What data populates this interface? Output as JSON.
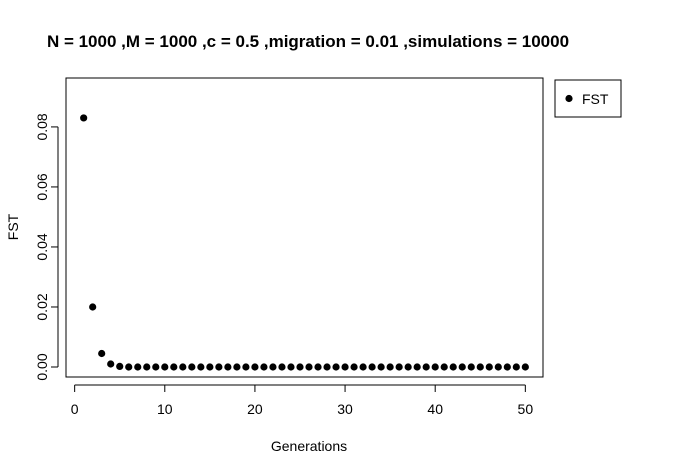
{
  "chart_data": {
    "type": "scatter",
    "title": "N = 1000 ,M = 1000 ,c = 0.5 ,migration = 0.01 ,simulations = 10000",
    "xlabel": "Generations",
    "ylabel": "FST",
    "xlim": [
      -0.96,
      51.96
    ],
    "ylim": [
      -0.00333,
      0.0963
    ],
    "x_ticks": [
      0,
      10,
      20,
      30,
      40,
      50
    ],
    "x_tick_labels": [
      "0",
      "10",
      "20",
      "30",
      "40",
      "50"
    ],
    "y_ticks": [
      0.0,
      0.02,
      0.04,
      0.06,
      0.08
    ],
    "y_tick_labels": [
      "0.00",
      "0.02",
      "0.04",
      "0.06",
      "0.08"
    ],
    "grid": false,
    "legend": {
      "position": "outside-top-right",
      "entries": [
        "FST"
      ]
    },
    "series": [
      {
        "name": "FST",
        "color": "#000000",
        "marker": "filled-circle",
        "x": [
          1,
          2,
          3,
          4,
          5,
          6,
          7,
          8,
          9,
          10,
          11,
          12,
          13,
          14,
          15,
          16,
          17,
          18,
          19,
          20,
          21,
          22,
          23,
          24,
          25,
          26,
          27,
          28,
          29,
          30,
          31,
          32,
          33,
          34,
          35,
          36,
          37,
          38,
          39,
          40,
          41,
          42,
          43,
          44,
          45,
          46,
          47,
          48,
          49,
          50
        ],
        "y": [
          0.083,
          0.02,
          0.0045,
          0.001,
          0.0002,
          0,
          0,
          0,
          0,
          0,
          0,
          0,
          0,
          0,
          0,
          0,
          0,
          0,
          0,
          0,
          0,
          0,
          0,
          0,
          0,
          0,
          0,
          0,
          0,
          0,
          0,
          0,
          0,
          0,
          0,
          0,
          0,
          0,
          0,
          0,
          0,
          0,
          0,
          0,
          0,
          0,
          0,
          0,
          0,
          0
        ]
      }
    ]
  }
}
